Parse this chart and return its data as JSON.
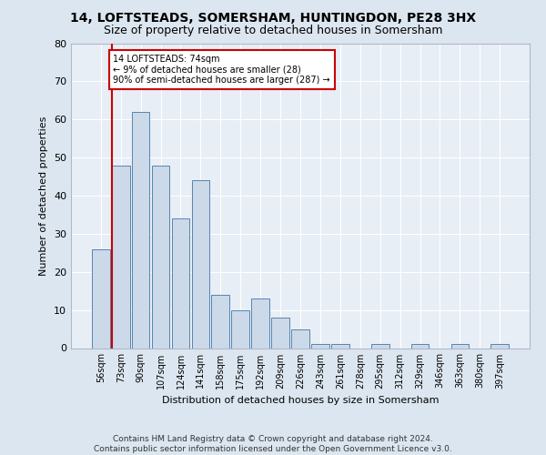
{
  "title_line1": "14, LOFTSTEADS, SOMERSHAM, HUNTINGDON, PE28 3HX",
  "title_line2": "Size of property relative to detached houses in Somersham",
  "xlabel": "Distribution of detached houses by size in Somersham",
  "ylabel": "Number of detached properties",
  "bar_labels": [
    "56sqm",
    "73sqm",
    "90sqm",
    "107sqm",
    "124sqm",
    "141sqm",
    "158sqm",
    "175sqm",
    "192sqm",
    "209sqm",
    "226sqm",
    "243sqm",
    "261sqm",
    "278sqm",
    "295sqm",
    "312sqm",
    "329sqm",
    "346sqm",
    "363sqm",
    "380sqm",
    "397sqm"
  ],
  "bar_values": [
    26,
    48,
    62,
    48,
    34,
    44,
    14,
    10,
    13,
    8,
    5,
    1,
    1,
    0,
    1,
    0,
    1,
    0,
    1,
    0,
    1
  ],
  "bar_color": "#ccd9e8",
  "bar_edge_color": "#5585b0",
  "ylim_max": 80,
  "yticks": [
    0,
    10,
    20,
    30,
    40,
    50,
    60,
    70,
    80
  ],
  "red_line_color": "#cc0000",
  "red_line_index": 1.5,
  "annotation_line1": "14 LOFTSTEADS: 74sqm",
  "annotation_line2": "← 9% of detached houses are smaller (28)",
  "annotation_line3": "90% of semi-detached houses are larger (287) →",
  "annotation_box_facecolor": "#ffffff",
  "annotation_box_edgecolor": "#cc0000",
  "footer_line1": "Contains HM Land Registry data © Crown copyright and database right 2024.",
  "footer_line2": "Contains public sector information licensed under the Open Government Licence v3.0.",
  "background_color": "#dce6f0",
  "plot_bg_color": "#e8eef5",
  "grid_color": "#ffffff",
  "title_fontsize": 10,
  "subtitle_fontsize": 9,
  "axis_label_fontsize": 8,
  "tick_fontsize": 7,
  "annotation_fontsize": 7,
  "footer_fontsize": 6.5
}
